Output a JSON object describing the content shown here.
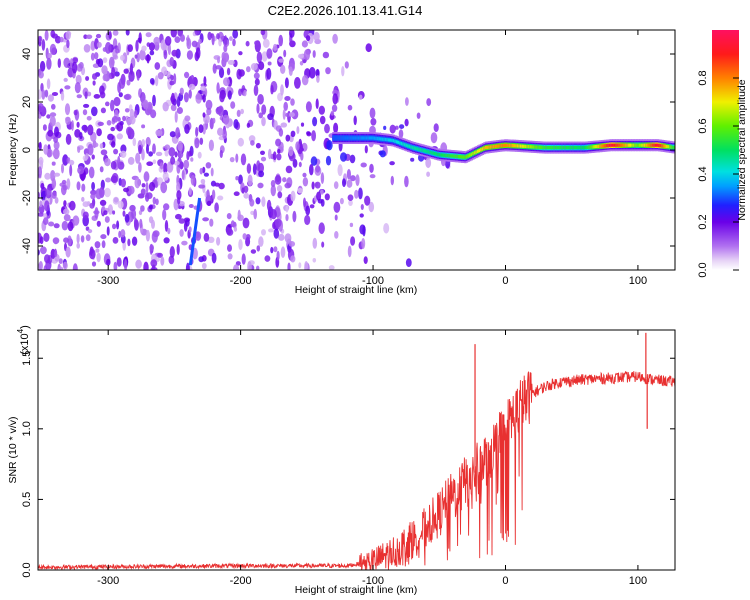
{
  "title": "C2E2.2026.101.13.41.G14",
  "chart_data": [
    {
      "type": "heatmap",
      "name": "spectrogram",
      "xlabel": "Height of straight line (km)",
      "ylabel": "Frequency (Hz)",
      "xlim": [
        -353,
        128
      ],
      "ylim": [
        -50,
        50
      ],
      "xticks": [
        -300,
        -200,
        -100,
        0,
        100
      ],
      "yticks": [
        -40,
        -20,
        0,
        20,
        40
      ],
      "xtick_labels": [
        "-300",
        "-200",
        "-100",
        "0",
        "100"
      ],
      "ytick_labels": [
        "-40",
        "-20",
        "0",
        "20",
        "40"
      ],
      "ridge": [
        {
          "x": -130,
          "y": 5,
          "v": 0.3
        },
        {
          "x": -100,
          "y": 5,
          "v": 0.35
        },
        {
          "x": -85,
          "y": 4,
          "v": 0.4
        },
        {
          "x": -70,
          "y": 1,
          "v": 0.45
        },
        {
          "x": -50,
          "y": -2,
          "v": 0.5
        },
        {
          "x": -30,
          "y": -3,
          "v": 0.6
        },
        {
          "x": -15,
          "y": 1,
          "v": 0.75
        },
        {
          "x": 0,
          "y": 2,
          "v": 0.8
        },
        {
          "x": 30,
          "y": 1,
          "v": 0.55
        },
        {
          "x": 60,
          "y": 1,
          "v": 0.5
        },
        {
          "x": 80,
          "y": 2,
          "v": 0.95
        },
        {
          "x": 100,
          "y": 2,
          "v": 0.6
        },
        {
          "x": 115,
          "y": 2,
          "v": 0.95
        },
        {
          "x": 128,
          "y": 1,
          "v": 0.5
        }
      ],
      "streak": {
        "x0": -238,
        "y0": -48,
        "x1": -231,
        "y1": -20
      }
    },
    {
      "type": "line",
      "name": "snr",
      "xlabel": "Height of straight line (km)",
      "ylabel": "SNR (10 * v/v)",
      "scale_label": "(x10",
      "scale_exponent": "4",
      "scale_suffix": ")",
      "xlim": [
        -353,
        128
      ],
      "ylim": [
        0,
        1.7
      ],
      "xticks": [
        -300,
        -200,
        -100,
        0,
        100
      ],
      "yticks": [
        0.0,
        0.5,
        1.0,
        1.5
      ],
      "xtick_labels": [
        "-300",
        "-200",
        "-100",
        "0",
        "100"
      ],
      "ytick_labels": [
        "0.0",
        "0.5",
        "1.0",
        "1.5"
      ],
      "color": "#e83030",
      "series": [
        {
          "name": "SNR",
          "x": [
            -353,
            -200,
            -150,
            -120,
            -100,
            -80,
            -70,
            -60,
            -50,
            -40,
            -30,
            -20,
            -10,
            0,
            10,
            20,
            30,
            40,
            60,
            80,
            100,
            110,
            128
          ],
          "values": [
            0.02,
            0.03,
            0.03,
            0.03,
            0.06,
            0.15,
            0.22,
            0.3,
            0.4,
            0.52,
            0.62,
            0.72,
            0.85,
            1.0,
            1.15,
            1.25,
            1.3,
            1.33,
            1.35,
            1.36,
            1.37,
            1.35,
            1.33
          ]
        }
      ],
      "spikes": [
        {
          "x": -23,
          "value": 1.6
        },
        {
          "x": 106,
          "value": 1.68
        },
        {
          "x": 107,
          "value": 1.0
        }
      ]
    }
  ],
  "colorbar": {
    "label": "Normalized spectral amplitude",
    "ticks": [
      0.0,
      0.2,
      0.4,
      0.6,
      0.8
    ],
    "tick_labels": [
      "0.0",
      "0.2",
      "0.4",
      "0.6",
      "0.8"
    ],
    "range": [
      0,
      1
    ]
  }
}
